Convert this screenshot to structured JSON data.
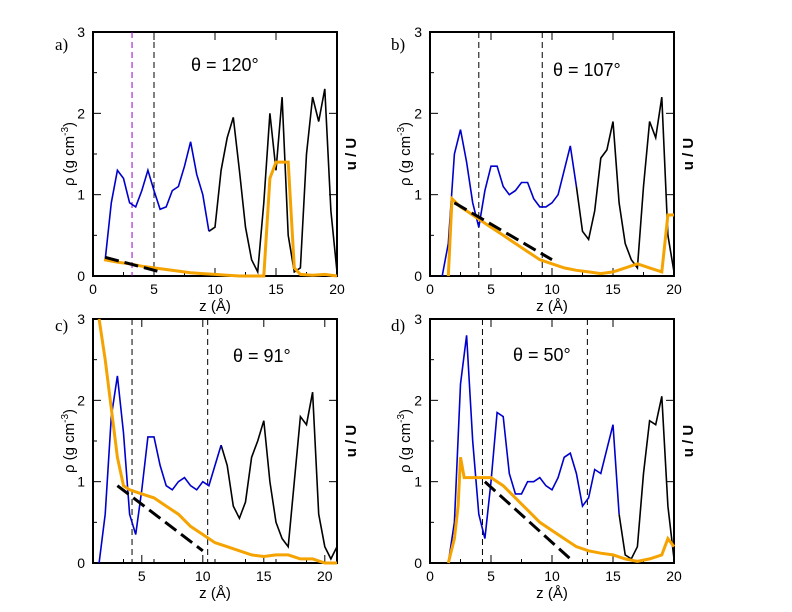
{
  "chart_data": [
    {
      "type": "line",
      "panel": "a)",
      "title": "θ = 120°",
      "xlabel": "z (Å)",
      "ylabel_main": "ρ (g cm",
      "ylabel_exp": "-3",
      "ylabel_close": ")",
      "ylabel_right": "u / U",
      "xlim": [
        0,
        20
      ],
      "ylim": [
        0,
        3
      ],
      "xticks": [
        0,
        5,
        10,
        15,
        20
      ],
      "yticks": [
        0,
        1,
        2,
        3
      ],
      "colors": {
        "water": "#0000cc",
        "solid": "#000000",
        "u": "#f5a300",
        "ref_line": "#000000",
        "slab": "#000000",
        "contact": "#9900cc"
      },
      "density_water": [
        [
          1.0,
          0.2
        ],
        [
          1.5,
          0.9
        ],
        [
          2.0,
          1.3
        ],
        [
          2.5,
          1.2
        ],
        [
          3.0,
          0.9
        ],
        [
          3.5,
          0.85
        ],
        [
          4.0,
          1.05
        ],
        [
          4.5,
          1.3
        ],
        [
          5.0,
          1.05
        ],
        [
          5.5,
          0.82
        ],
        [
          6.0,
          0.85
        ],
        [
          6.5,
          1.05
        ],
        [
          7.0,
          1.1
        ],
        [
          7.5,
          1.35
        ],
        [
          8.0,
          1.65
        ],
        [
          8.5,
          1.25
        ],
        [
          9.0,
          1.0
        ],
        [
          9.5,
          0.55
        ],
        [
          10.0,
          0.6
        ],
        [
          10.5,
          1.3
        ],
        [
          11.0,
          1.7
        ],
        [
          11.5,
          1.95
        ],
        [
          12.0,
          1.3
        ],
        [
          12.5,
          0.6
        ],
        [
          13.0,
          0.2
        ],
        [
          13.5,
          0.05
        ],
        [
          14.0,
          0.9
        ],
        [
          14.5,
          2.0
        ],
        [
          15.0,
          1.3
        ],
        [
          15.5,
          2.2
        ],
        [
          16.0,
          0.5
        ],
        [
          16.5,
          0.05
        ],
        [
          17.0,
          0.1
        ],
        [
          17.5,
          1.5
        ],
        [
          18.0,
          2.2
        ],
        [
          18.5,
          1.9
        ],
        [
          19.0,
          2.3
        ],
        [
          19.5,
          0.8
        ],
        [
          20.0,
          0.05
        ]
      ],
      "density_water_end": 9.5,
      "u_curve": [
        [
          0.9,
          0.2
        ],
        [
          2.0,
          0.17
        ],
        [
          3.0,
          0.15
        ],
        [
          4.0,
          0.12
        ],
        [
          5.0,
          0.1
        ],
        [
          6.0,
          0.08
        ],
        [
          7.0,
          0.06
        ],
        [
          8.0,
          0.04
        ],
        [
          9.0,
          0.03
        ],
        [
          10.0,
          0.02
        ],
        [
          11.0,
          0.01
        ],
        [
          12.0,
          0.0
        ],
        [
          13.0,
          0.0
        ],
        [
          14.0,
          0.0
        ],
        [
          14.5,
          1.2
        ],
        [
          15.0,
          1.4
        ],
        [
          16.0,
          1.4
        ],
        [
          16.5,
          0.1
        ],
        [
          17.0,
          0.02
        ],
        [
          18.0,
          0.01
        ],
        [
          19.0,
          0.02
        ],
        [
          20.0,
          0.0
        ]
      ],
      "ref_line": [
        [
          1.0,
          0.23
        ],
        [
          5.5,
          0.05
        ]
      ],
      "slab_lines": [
        5.0
      ],
      "contact_lines": [
        3.2
      ]
    },
    {
      "type": "line",
      "panel": "b)",
      "title": "θ = 107°",
      "xlabel": "z (Å)",
      "ylabel_main": "ρ (g cm",
      "ylabel_exp": "-3",
      "ylabel_close": ")",
      "ylabel_right": "u / U",
      "xlim": [
        0,
        20
      ],
      "ylim": [
        0,
        3
      ],
      "xticks": [
        0,
        5,
        10,
        15,
        20
      ],
      "yticks": [
        0,
        1,
        2,
        3
      ],
      "colors": {
        "water": "#0000cc",
        "solid": "#000000",
        "u": "#f5a300",
        "ref_line": "#000000",
        "slab": "#000000",
        "contact": "#9900cc"
      },
      "density_water": [
        [
          1.0,
          0.0
        ],
        [
          1.5,
          0.4
        ],
        [
          2.0,
          1.5
        ],
        [
          2.5,
          1.8
        ],
        [
          3.0,
          1.4
        ],
        [
          3.5,
          0.9
        ],
        [
          4.0,
          0.6
        ],
        [
          4.5,
          1.05
        ],
        [
          5.0,
          1.35
        ],
        [
          5.5,
          1.35
        ],
        [
          6.0,
          1.1
        ],
        [
          6.5,
          1.0
        ],
        [
          7.0,
          1.05
        ],
        [
          7.5,
          1.15
        ],
        [
          8.0,
          1.15
        ],
        [
          8.5,
          0.95
        ],
        [
          9.0,
          0.85
        ],
        [
          9.5,
          0.85
        ],
        [
          10.0,
          0.9
        ],
        [
          10.5,
          1.0
        ],
        [
          11.0,
          1.3
        ],
        [
          11.5,
          1.6
        ],
        [
          12.0,
          1.1
        ],
        [
          12.5,
          0.55
        ],
        [
          13.0,
          0.45
        ],
        [
          13.5,
          0.8
        ],
        [
          14.0,
          1.45
        ],
        [
          14.5,
          1.55
        ],
        [
          15.0,
          1.9
        ],
        [
          15.5,
          0.9
        ],
        [
          16.0,
          0.4
        ],
        [
          16.5,
          0.2
        ],
        [
          17.0,
          0.1
        ],
        [
          17.5,
          1.1
        ],
        [
          18.0,
          1.9
        ],
        [
          18.5,
          1.7
        ],
        [
          19.0,
          2.2
        ],
        [
          19.5,
          0.5
        ],
        [
          20.0,
          0.05
        ]
      ],
      "density_water_end": 12.0,
      "u_curve": [
        [
          1.5,
          0.0
        ],
        [
          1.8,
          0.95
        ],
        [
          2.5,
          0.85
        ],
        [
          3.0,
          0.8
        ],
        [
          3.5,
          0.75
        ],
        [
          4.0,
          0.7
        ],
        [
          5.0,
          0.6
        ],
        [
          6.0,
          0.5
        ],
        [
          7.0,
          0.4
        ],
        [
          8.0,
          0.3
        ],
        [
          9.0,
          0.2
        ],
        [
          10.0,
          0.15
        ],
        [
          11.0,
          0.1
        ],
        [
          12.0,
          0.07
        ],
        [
          13.0,
          0.05
        ],
        [
          14.0,
          0.03
        ],
        [
          15.0,
          0.05
        ],
        [
          16.0,
          0.1
        ],
        [
          17.0,
          0.15
        ],
        [
          18.0,
          0.1
        ],
        [
          19.0,
          0.05
        ],
        [
          19.5,
          0.75
        ],
        [
          20.0,
          0.75
        ]
      ],
      "ref_line": [
        [
          2.0,
          0.9
        ],
        [
          10.0,
          0.2
        ]
      ],
      "slab_lines": [
        4.0,
        9.2
      ],
      "contact_lines": []
    },
    {
      "type": "line",
      "panel": "c)",
      "title": "θ = 91°",
      "xlabel": "z (Å)",
      "ylabel_main": "ρ (g cm",
      "ylabel_exp": "-3",
      "ylabel_close": ")",
      "ylabel_right": "u / U",
      "xlim": [
        1,
        21
      ],
      "ylim": [
        0,
        3
      ],
      "xticks": [
        5,
        10,
        15,
        20
      ],
      "yticks": [
        0,
        1,
        2,
        3
      ],
      "colors": {
        "water": "#0000cc",
        "solid": "#000000",
        "u": "#f5a300",
        "ref_line": "#000000",
        "slab": "#000000",
        "contact": "#9900cc"
      },
      "density_water": [
        [
          1.5,
          0.0
        ],
        [
          2.0,
          0.6
        ],
        [
          2.5,
          1.8
        ],
        [
          3.0,
          2.3
        ],
        [
          3.5,
          1.6
        ],
        [
          4.0,
          0.6
        ],
        [
          4.5,
          0.35
        ],
        [
          5.0,
          0.9
        ],
        [
          5.5,
          1.55
        ],
        [
          6.0,
          1.55
        ],
        [
          6.5,
          1.2
        ],
        [
          7.0,
          0.95
        ],
        [
          7.5,
          0.9
        ],
        [
          8.0,
          1.0
        ],
        [
          8.5,
          1.05
        ],
        [
          9.0,
          0.95
        ],
        [
          9.5,
          0.9
        ],
        [
          10.0,
          1.0
        ],
        [
          10.5,
          0.95
        ],
        [
          11.0,
          1.2
        ],
        [
          11.5,
          1.45
        ],
        [
          12.0,
          1.2
        ],
        [
          12.5,
          0.7
        ],
        [
          13.0,
          0.55
        ],
        [
          13.5,
          0.75
        ],
        [
          14.0,
          1.3
        ],
        [
          14.5,
          1.5
        ],
        [
          15.0,
          1.75
        ],
        [
          15.5,
          1.0
        ],
        [
          16.0,
          0.5
        ],
        [
          16.5,
          0.3
        ],
        [
          17.0,
          0.2
        ],
        [
          17.5,
          1.0
        ],
        [
          18.0,
          1.8
        ],
        [
          18.5,
          1.7
        ],
        [
          19.0,
          2.1
        ],
        [
          19.5,
          0.6
        ],
        [
          20.0,
          0.2
        ],
        [
          20.5,
          0.05
        ],
        [
          21.0,
          0.2
        ]
      ],
      "density_water_end": 11.5,
      "u_curve": [
        [
          1.5,
          3.0
        ],
        [
          2.0,
          2.5
        ],
        [
          2.5,
          1.9
        ],
        [
          3.0,
          1.3
        ],
        [
          3.5,
          0.95
        ],
        [
          4.0,
          0.9
        ],
        [
          5.0,
          0.85
        ],
        [
          6.0,
          0.8
        ],
        [
          7.0,
          0.7
        ],
        [
          8.0,
          0.6
        ],
        [
          9.0,
          0.45
        ],
        [
          10.0,
          0.35
        ],
        [
          11.0,
          0.25
        ],
        [
          12.0,
          0.2
        ],
        [
          13.0,
          0.15
        ],
        [
          14.0,
          0.1
        ],
        [
          15.0,
          0.08
        ],
        [
          16.0,
          0.1
        ],
        [
          17.0,
          0.1
        ],
        [
          18.0,
          0.05
        ],
        [
          19.0,
          0.05
        ],
        [
          20.0,
          0.0
        ],
        [
          21.0,
          0.0
        ]
      ],
      "ref_line": [
        [
          3.0,
          0.95
        ],
        [
          10.0,
          0.15
        ]
      ],
      "slab_lines": [
        4.2,
        10.4
      ],
      "contact_lines": []
    },
    {
      "type": "line",
      "panel": "d)",
      "title": "θ = 50°",
      "xlabel": "z (Å)",
      "ylabel_main": "ρ (g cm",
      "ylabel_exp": "-3",
      "ylabel_close": ")",
      "ylabel_right": "u / U",
      "xlim": [
        0,
        20
      ],
      "ylim": [
        0,
        3
      ],
      "xticks": [
        0,
        5,
        10,
        15,
        20
      ],
      "yticks": [
        0,
        1,
        2,
        3
      ],
      "colors": {
        "water": "#0000cc",
        "solid": "#000000",
        "u": "#f5a300",
        "ref_line": "#000000",
        "slab": "#000000",
        "contact": "#9900cc"
      },
      "density_water": [
        [
          1.5,
          0.0
        ],
        [
          2.0,
          0.5
        ],
        [
          2.5,
          2.2
        ],
        [
          3.0,
          2.8
        ],
        [
          3.5,
          1.5
        ],
        [
          4.0,
          0.6
        ],
        [
          4.5,
          0.3
        ],
        [
          5.0,
          1.0
        ],
        [
          5.5,
          1.85
        ],
        [
          6.0,
          1.8
        ],
        [
          6.5,
          1.1
        ],
        [
          7.0,
          0.85
        ],
        [
          7.5,
          0.85
        ],
        [
          8.0,
          1.0
        ],
        [
          8.5,
          1.0
        ],
        [
          9.0,
          1.05
        ],
        [
          9.5,
          0.95
        ],
        [
          10.0,
          0.9
        ],
        [
          10.5,
          1.05
        ],
        [
          11.0,
          1.3
        ],
        [
          11.5,
          1.35
        ],
        [
          12.0,
          1.1
        ],
        [
          12.5,
          0.7
        ],
        [
          13.0,
          0.8
        ],
        [
          13.5,
          1.15
        ],
        [
          14.0,
          1.1
        ],
        [
          14.5,
          1.4
        ],
        [
          15.0,
          1.7
        ],
        [
          15.5,
          0.6
        ],
        [
          16.0,
          0.1
        ],
        [
          16.5,
          0.05
        ],
        [
          17.0,
          0.2
        ],
        [
          17.5,
          1.1
        ],
        [
          18.0,
          1.75
        ],
        [
          18.5,
          1.7
        ],
        [
          19.0,
          2.05
        ],
        [
          19.5,
          0.7
        ],
        [
          20.0,
          0.05
        ]
      ],
      "density_water_end": 15.5,
      "u_curve": [
        [
          1.5,
          0.0
        ],
        [
          2.0,
          0.3
        ],
        [
          2.3,
          0.7
        ],
        [
          2.5,
          1.3
        ],
        [
          2.8,
          1.05
        ],
        [
          3.5,
          1.05
        ],
        [
          4.0,
          1.05
        ],
        [
          5.0,
          1.05
        ],
        [
          6.0,
          0.95
        ],
        [
          7.0,
          0.8
        ],
        [
          8.0,
          0.65
        ],
        [
          9.0,
          0.5
        ],
        [
          10.0,
          0.4
        ],
        [
          11.0,
          0.3
        ],
        [
          12.0,
          0.2
        ],
        [
          13.0,
          0.15
        ],
        [
          14.0,
          0.12
        ],
        [
          15.0,
          0.1
        ],
        [
          16.0,
          0.05
        ],
        [
          17.0,
          0.02
        ],
        [
          18.0,
          0.05
        ],
        [
          19.0,
          0.1
        ],
        [
          19.5,
          0.3
        ],
        [
          20.0,
          0.2
        ]
      ],
      "ref_line": [
        [
          4.5,
          1.0
        ],
        [
          11.5,
          0.05
        ]
      ],
      "slab_lines": [
        4.3,
        12.9
      ],
      "contact_lines": []
    }
  ]
}
